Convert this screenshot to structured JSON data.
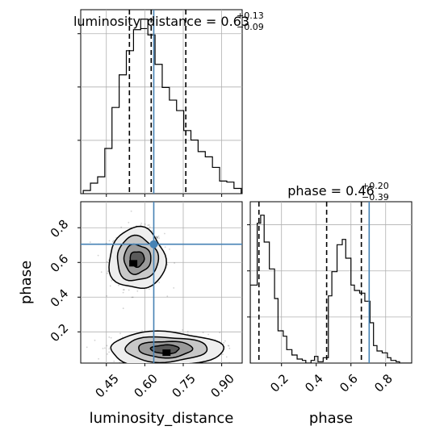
{
  "chart_data": {
    "type": "corner",
    "parameters": [
      "luminosity_distance",
      "phase"
    ],
    "truths": {
      "luminosity_distance": 0.635,
      "phase": 0.705
    },
    "truth_color": "#4682b4",
    "grid": true,
    "panels": [
      {
        "id": "hist-luminosity",
        "type": "histogram",
        "parameter": "luminosity_distance",
        "title": {
          "base": "luminosity_distance = 0.63",
          "sup": "+0.13",
          "sub": "−0.09"
        },
        "xlim": [
          0.35,
          0.98
        ],
        "bin_edges": [
          0.36,
          0.388,
          0.416,
          0.444,
          0.472,
          0.5,
          0.528,
          0.556,
          0.584,
          0.612,
          0.64,
          0.668,
          0.696,
          0.724,
          0.752,
          0.78,
          0.808,
          0.836,
          0.864,
          0.892,
          0.92,
          0.948,
          0.976
        ],
        "density": [
          0.3,
          1,
          1.6,
          4.3,
          8.2,
          11.3,
          13.6,
          15.6,
          16.6,
          15.1,
          12.3,
          10.1,
          8.9,
          7.9,
          6,
          5.1,
          4,
          3.5,
          2.5,
          1.2,
          1.1,
          0.5
        ],
        "ylim": [
          0,
          17.5
        ],
        "quantile_lines": [
          0.54,
          0.625,
          0.76
        ],
        "truth": 0.635,
        "xticks": [],
        "yticks_count": 3
      },
      {
        "id": "hist-phase",
        "type": "histogram",
        "parameter": "phase",
        "title": {
          "base": "phase = 0.46",
          "sup": "+0.20",
          "sub": "−0.39"
        },
        "xlim": [
          0.02,
          0.95
        ],
        "bin_edges": [
          0.02,
          0.06,
          0.08,
          0.1,
          0.13,
          0.16,
          0.18,
          0.21,
          0.23,
          0.26,
          0.29,
          0.32,
          0.34,
          0.37,
          0.39,
          0.41,
          0.44,
          0.47,
          0.49,
          0.52,
          0.55,
          0.57,
          0.6,
          0.62,
          0.65,
          0.68,
          0.71,
          0.73,
          0.75,
          0.78,
          0.81,
          0.83,
          0.86,
          0.88,
          0.91,
          0.95
        ],
        "density": [
          2.9,
          5.2,
          5.5,
          4.5,
          3.5,
          2.4,
          1.2,
          1,
          0.5,
          0.3,
          0.15,
          0.1,
          0,
          0.1,
          0.25,
          0.05,
          0.2,
          2.5,
          3.4,
          4.4,
          4.6,
          3.9,
          2.9,
          2.7,
          2.6,
          2.3,
          1.5,
          0.65,
          0.45,
          0.38,
          0.2,
          0.1,
          0.05,
          0,
          0
        ],
        "ylim": [
          0,
          6
        ],
        "quantile_lines": [
          0.07,
          0.46,
          0.66
        ],
        "truth": 0.705,
        "xticks": [
          0.2,
          0.4,
          0.6,
          0.8
        ],
        "xlabel": "phase"
      },
      {
        "id": "scatter-joint",
        "type": "contour-scatter",
        "xparam": "luminosity_distance",
        "yparam": "phase",
        "xlim": [
          0.35,
          0.98
        ],
        "ylim": [
          0.02,
          0.95
        ],
        "xticks": [
          0.45,
          0.6,
          0.75,
          0.9
        ],
        "yticks": [
          0.2,
          0.4,
          0.6,
          0.8
        ],
        "xlabel": "luminosity_distance",
        "ylabel": "phase",
        "modes": [
          {
            "center": [
              0.57,
              0.62
            ],
            "sx": 0.05,
            "sy": 0.08,
            "weight": 0.55,
            "peak": [
              0.555,
              0.595
            ]
          },
          {
            "center": [
              0.68,
              0.1
            ],
            "sx": 0.1,
            "sy": 0.045,
            "weight": 0.45,
            "peak": [
              0.685,
              0.08
            ]
          }
        ],
        "truth": [
          0.635,
          0.705
        ]
      }
    ]
  },
  "tick_labels": {
    "lum_x": [
      "0.45",
      "0.60",
      "0.75",
      "0.90"
    ],
    "phase_y": [
      "0.2",
      "0.4",
      "0.6",
      "0.8"
    ],
    "phase_x": [
      "0.2",
      "0.4",
      "0.6",
      "0.8"
    ]
  },
  "labels": {
    "xlabel_lum": "luminosity_distance",
    "xlabel_phase": "phase",
    "ylabel_phase": "phase"
  }
}
